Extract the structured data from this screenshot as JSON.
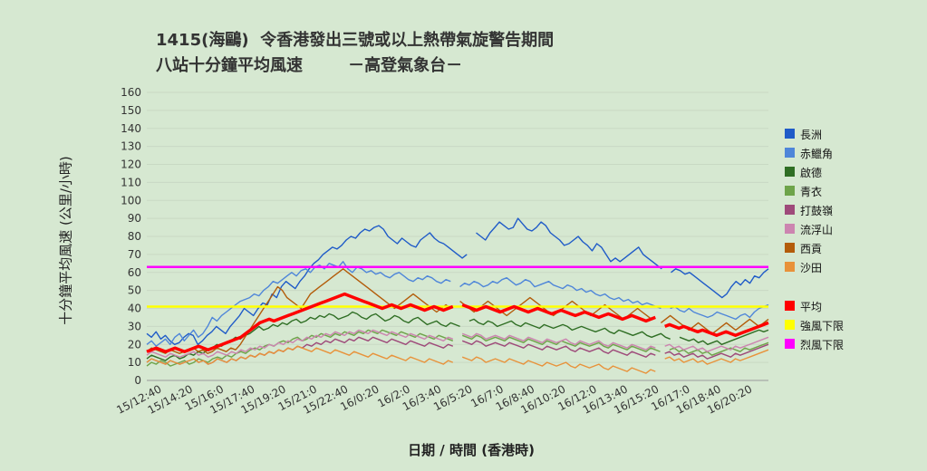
{
  "chart_data": {
    "type": "line",
    "title": "1415(海鷗)  令香港發出三號或以上熱帶氣旋警告期間",
    "subtitle": "八站十分鐘平均風速        －高登氣象台－",
    "ylabel": "十分鐘平均風速 (公里/小時)",
    "xlabel": "日期 / 時間 (香港時)",
    "ylim": [
      0,
      160
    ],
    "yticks": [
      0,
      10,
      20,
      30,
      40,
      50,
      60,
      70,
      80,
      90,
      100,
      110,
      120,
      130,
      140,
      150,
      160
    ],
    "x_tick_labels": [
      "15/12:40",
      "15/14:20",
      "15/16:0",
      "15/17:40",
      "15/19:20",
      "15/21:0",
      "15/22:40",
      "16/0:20",
      "16/2:0",
      "16/3:40",
      "16/5:20",
      "16/7:0",
      "16/8:40",
      "16/10:20",
      "16/12:0",
      "16/13:40",
      "16/15:20",
      "16/17:0",
      "16/18:40",
      "16/20:20"
    ],
    "grid": true,
    "legend_position": "right",
    "series": [
      {
        "name": "長洲",
        "color": "#1f5bc8",
        "values": [
          26,
          24,
          27,
          23,
          25,
          22,
          20,
          21,
          24,
          26,
          25,
          20,
          22,
          25,
          27,
          30,
          28,
          26,
          30,
          33,
          36,
          40,
          38,
          36,
          40,
          43,
          42,
          48,
          46,
          52,
          55,
          53,
          51,
          55,
          58,
          62,
          65,
          67,
          70,
          72,
          74,
          73,
          75,
          78,
          80,
          79,
          82,
          84,
          83,
          85,
          86,
          84,
          80,
          78,
          76,
          79,
          77,
          75,
          74,
          78,
          80,
          82,
          79,
          77,
          76,
          74,
          72,
          70,
          68,
          70,
          null,
          82,
          80,
          78,
          82,
          85,
          88,
          86,
          84,
          85,
          90,
          87,
          84,
          83,
          85,
          88,
          86,
          82,
          80,
          78,
          75,
          76,
          78,
          80,
          77,
          75,
          72,
          76,
          74,
          70,
          66,
          68,
          66,
          68,
          70,
          72,
          74,
          70,
          68,
          66,
          64,
          62,
          null,
          60,
          62,
          61,
          59,
          60,
          58,
          56,
          54,
          52,
          50,
          48,
          46,
          48,
          52,
          55,
          53,
          56,
          54,
          58,
          57,
          60,
          62
        ]
      },
      {
        "name": "赤鱲角",
        "color": "#4f86d9",
        "values": [
          20,
          22,
          19,
          21,
          23,
          20,
          24,
          26,
          22,
          25,
          28,
          24,
          26,
          30,
          35,
          33,
          36,
          38,
          40,
          42,
          44,
          45,
          46,
          48,
          47,
          50,
          52,
          55,
          54,
          56,
          58,
          60,
          58,
          61,
          62,
          60,
          63,
          64,
          62,
          65,
          64,
          63,
          66,
          62,
          60,
          63,
          62,
          60,
          61,
          59,
          60,
          58,
          57,
          59,
          60,
          58,
          56,
          55,
          57,
          56,
          58,
          57,
          55,
          54,
          56,
          55,
          null,
          52,
          54,
          53,
          55,
          54,
          52,
          53,
          55,
          54,
          56,
          57,
          55,
          53,
          54,
          56,
          55,
          52,
          53,
          54,
          55,
          53,
          52,
          51,
          53,
          52,
          50,
          51,
          49,
          50,
          48,
          47,
          48,
          46,
          45,
          46,
          44,
          45,
          43,
          44,
          42,
          43,
          42,
          41,
          40,
          null,
          40,
          41,
          39,
          38,
          40,
          38,
          37,
          36,
          35,
          36,
          38,
          37,
          36,
          35,
          34,
          36,
          37,
          35,
          38,
          40,
          41,
          42
        ]
      },
      {
        "name": "啟德",
        "color": "#2f6e24",
        "values": [
          12,
          14,
          13,
          12,
          11,
          13,
          14,
          12,
          13,
          15,
          14,
          16,
          15,
          17,
          18,
          20,
          19,
          21,
          22,
          24,
          23,
          25,
          26,
          28,
          30,
          28,
          29,
          31,
          30,
          32,
          31,
          33,
          34,
          32,
          33,
          35,
          34,
          36,
          35,
          37,
          36,
          34,
          35,
          36,
          38,
          37,
          35,
          34,
          36,
          37,
          35,
          33,
          34,
          36,
          35,
          33,
          32,
          34,
          35,
          33,
          31,
          32,
          33,
          31,
          30,
          32,
          31,
          30,
          null,
          33,
          34,
          32,
          31,
          33,
          32,
          30,
          31,
          32,
          33,
          31,
          30,
          32,
          31,
          30,
          29,
          31,
          30,
          29,
          30,
          31,
          30,
          28,
          29,
          30,
          29,
          28,
          27,
          28,
          29,
          27,
          26,
          28,
          27,
          26,
          25,
          26,
          27,
          25,
          24,
          25,
          26,
          24,
          23,
          null,
          24,
          23,
          22,
          23,
          21,
          22,
          20,
          21,
          22,
          20,
          21,
          22,
          23,
          24,
          25,
          26,
          27,
          28,
          27,
          28
        ]
      },
      {
        "name": "青衣",
        "color": "#6ea44a",
        "values": [
          8,
          10,
          9,
          11,
          10,
          8,
          9,
          10,
          11,
          9,
          10,
          12,
          11,
          10,
          12,
          13,
          12,
          14,
          13,
          15,
          16,
          15,
          17,
          18,
          17,
          19,
          20,
          19,
          21,
          22,
          21,
          23,
          24,
          22,
          23,
          25,
          24,
          26,
          25,
          24,
          26,
          25,
          27,
          26,
          25,
          27,
          26,
          28,
          27,
          26,
          28,
          27,
          26,
          25,
          27,
          26,
          25,
          24,
          26,
          25,
          24,
          23,
          25,
          24,
          23,
          22,
          null,
          25,
          24,
          23,
          25,
          24,
          22,
          23,
          24,
          23,
          22,
          24,
          23,
          22,
          21,
          23,
          22,
          21,
          20,
          22,
          21,
          20,
          22,
          21,
          20,
          19,
          21,
          20,
          19,
          20,
          21,
          19,
          18,
          20,
          19,
          18,
          17,
          19,
          18,
          17,
          16,
          18,
          17,
          16,
          null,
          17,
          18,
          16,
          17,
          15,
          16,
          17,
          15,
          16,
          14,
          15,
          16,
          17,
          18,
          17,
          16,
          18,
          17,
          18,
          19,
          20,
          21
        ]
      },
      {
        "name": "打鼓嶺",
        "color": "#9e4a7a",
        "values": [
          10,
          12,
          11,
          10,
          9,
          11,
          10,
          9,
          10,
          11,
          12,
          10,
          11,
          9,
          10,
          12,
          11,
          10,
          12,
          11,
          13,
          12,
          14,
          13,
          15,
          14,
          16,
          15,
          17,
          16,
          18,
          17,
          19,
          18,
          20,
          19,
          21,
          20,
          22,
          21,
          23,
          22,
          21,
          23,
          22,
          24,
          23,
          22,
          24,
          23,
          22,
          21,
          23,
          22,
          21,
          20,
          22,
          21,
          20,
          19,
          21,
          20,
          19,
          18,
          20,
          19,
          null,
          22,
          21,
          20,
          22,
          21,
          19,
          20,
          21,
          20,
          19,
          21,
          20,
          19,
          18,
          20,
          19,
          18,
          17,
          19,
          18,
          17,
          18,
          19,
          17,
          16,
          18,
          17,
          16,
          17,
          18,
          16,
          15,
          17,
          16,
          15,
          14,
          16,
          15,
          14,
          13,
          15,
          14,
          null,
          15,
          16,
          14,
          15,
          13,
          14,
          15,
          13,
          14,
          12,
          13,
          14,
          15,
          14,
          13,
          15,
          14,
          15,
          16,
          17,
          18,
          19,
          20
        ]
      },
      {
        "name": "流浮山",
        "color": "#cc85b0",
        "values": [
          14,
          16,
          15,
          14,
          13,
          15,
          14,
          13,
          14,
          15,
          16,
          14,
          15,
          13,
          14,
          16,
          15,
          14,
          16,
          15,
          17,
          16,
          18,
          17,
          19,
          18,
          20,
          19,
          21,
          20,
          22,
          21,
          23,
          22,
          24,
          23,
          25,
          24,
          26,
          25,
          27,
          26,
          25,
          27,
          26,
          28,
          27,
          26,
          28,
          27,
          26,
          25,
          27,
          26,
          25,
          24,
          26,
          25,
          24,
          23,
          25,
          24,
          23,
          22,
          24,
          23,
          null,
          26,
          25,
          24,
          26,
          25,
          23,
          24,
          25,
          24,
          23,
          25,
          24,
          23,
          22,
          24,
          23,
          22,
          21,
          23,
          22,
          21,
          22,
          23,
          21,
          20,
          22,
          21,
          20,
          21,
          22,
          20,
          19,
          21,
          20,
          19,
          18,
          20,
          19,
          18,
          17,
          19,
          18,
          null,
          19,
          20,
          18,
          19,
          17,
          18,
          19,
          17,
          18,
          16,
          17,
          18,
          19,
          18,
          17,
          19,
          18,
          19,
          20,
          21,
          22,
          23,
          24
        ]
      },
      {
        "name": "西貢",
        "color": "#b35c0a",
        "values": [
          16,
          18,
          17,
          16,
          15,
          17,
          16,
          15,
          16,
          17,
          18,
          16,
          17,
          15,
          16,
          18,
          17,
          16,
          18,
          17,
          20,
          24,
          28,
          32,
          36,
          40,
          44,
          48,
          52,
          50,
          46,
          44,
          42,
          40,
          44,
          48,
          50,
          52,
          54,
          56,
          58,
          60,
          62,
          60,
          58,
          56,
          54,
          52,
          50,
          48,
          46,
          44,
          42,
          40,
          42,
          44,
          46,
          48,
          46,
          44,
          42,
          40,
          38,
          40,
          42,
          40,
          null,
          44,
          42,
          40,
          38,
          40,
          42,
          44,
          42,
          40,
          38,
          36,
          38,
          40,
          42,
          44,
          46,
          44,
          42,
          40,
          38,
          36,
          38,
          40,
          42,
          44,
          42,
          40,
          38,
          36,
          38,
          40,
          42,
          40,
          38,
          36,
          34,
          36,
          38,
          40,
          38,
          36,
          34,
          null,
          32,
          34,
          36,
          34,
          32,
          30,
          28,
          30,
          32,
          30,
          28,
          26,
          28,
          30,
          32,
          30,
          28,
          30,
          32,
          34,
          32,
          30,
          32,
          34
        ]
      },
      {
        "name": "沙田",
        "color": "#e8923a",
        "values": [
          10,
          12,
          11,
          10,
          9,
          11,
          10,
          9,
          10,
          11,
          12,
          10,
          11,
          9,
          10,
          12,
          11,
          10,
          12,
          11,
          13,
          12,
          14,
          13,
          15,
          14,
          16,
          15,
          17,
          16,
          18,
          17,
          19,
          18,
          17,
          16,
          18,
          17,
          16,
          15,
          17,
          16,
          15,
          14,
          16,
          15,
          14,
          13,
          15,
          14,
          13,
          12,
          14,
          13,
          12,
          11,
          13,
          12,
          11,
          10,
          12,
          11,
          10,
          9,
          11,
          10,
          null,
          13,
          12,
          11,
          13,
          12,
          10,
          11,
          12,
          11,
          10,
          12,
          11,
          10,
          9,
          11,
          10,
          9,
          8,
          10,
          9,
          8,
          9,
          10,
          8,
          7,
          9,
          8,
          7,
          8,
          9,
          7,
          6,
          8,
          7,
          6,
          5,
          7,
          6,
          5,
          4,
          6,
          5,
          null,
          12,
          13,
          11,
          12,
          10,
          11,
          12,
          10,
          11,
          9,
          10,
          11,
          12,
          11,
          10,
          12,
          11,
          12,
          13,
          14,
          15,
          16,
          17
        ]
      },
      {
        "name": "平均",
        "color": "#ff0000",
        "values": [
          16,
          17,
          18,
          17,
          16,
          17,
          18,
          17,
          16,
          17,
          18,
          19,
          18,
          17,
          18,
          19,
          20,
          21,
          22,
          23,
          24,
          26,
          28,
          30,
          32,
          33,
          34,
          33,
          34,
          35,
          36,
          37,
          38,
          39,
          40,
          41,
          42,
          43,
          44,
          45,
          46,
          47,
          48,
          47,
          46,
          45,
          44,
          43,
          42,
          41,
          40,
          41,
          42,
          41,
          40,
          41,
          42,
          41,
          40,
          39,
          40,
          41,
          40,
          39,
          40,
          41,
          null,
          42,
          41,
          40,
          39,
          40,
          41,
          40,
          39,
          38,
          39,
          40,
          41,
          40,
          39,
          38,
          39,
          40,
          39,
          38,
          37,
          38,
          39,
          38,
          37,
          36,
          37,
          38,
          37,
          36,
          35,
          36,
          37,
          36,
          35,
          34,
          35,
          36,
          35,
          34,
          33,
          34,
          35,
          null,
          30,
          31,
          30,
          29,
          30,
          29,
          28,
          27,
          28,
          27,
          26,
          25,
          26,
          27,
          26,
          25,
          26,
          27,
          28,
          29,
          30,
          31,
          32
        ]
      },
      {
        "name": "強風下限",
        "color": "#ffff00",
        "values": [
          41,
          41
        ]
      },
      {
        "name": "烈風下限",
        "color": "#ff00ff",
        "values": [
          63,
          63
        ]
      }
    ]
  }
}
